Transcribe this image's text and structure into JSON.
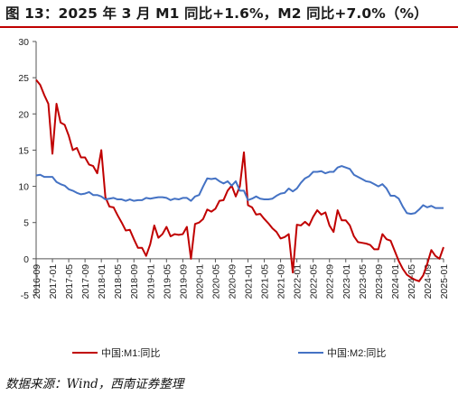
{
  "title": "图 13：2025 年 3 月 M1 同比+1.6%，M2 同比+7.0%（%）",
  "source": "数据来源：Wind，西南证券整理",
  "colors": {
    "m1": "#c00000",
    "m2": "#4472c4",
    "title_rule": "#c00000",
    "axis": "#555555"
  },
  "chart_data": {
    "type": "line",
    "y_ticks": [
      "30",
      "25",
      "20",
      "15",
      "10",
      "5",
      "0",
      "-5"
    ],
    "ylim": [
      -5,
      30
    ],
    "x_tick_labels": [
      "2016-09",
      "2017-01",
      "2017-05",
      "2017-09",
      "2018-01",
      "2018-05",
      "2018-09",
      "2019-01",
      "2019-05",
      "2019-09",
      "2020-01",
      "2020-05",
      "2020-09",
      "2021-01",
      "2021-05",
      "2021-09",
      "2022-01",
      "2022-05",
      "2022-09",
      "2023-01",
      "2023-05",
      "2023-09",
      "2024-01",
      "2024-05",
      "2024-09",
      "2025-01"
    ],
    "x_start": "2016-09",
    "grid": false,
    "legend_position": "bottom",
    "series": [
      {
        "name": "中国:M1:同比",
        "color": "#c00000",
        "values": [
          24.7,
          24.0,
          22.6,
          21.4,
          14.5,
          21.4,
          18.8,
          18.5,
          17.0,
          15.0,
          15.3,
          14.0,
          14.0,
          13.0,
          12.8,
          11.8,
          15.0,
          8.5,
          7.2,
          7.1,
          6.0,
          5.0,
          3.9,
          4.0,
          2.7,
          1.5,
          1.5,
          0.4,
          2.0,
          4.6,
          2.9,
          3.4,
          4.4,
          3.1,
          3.4,
          3.3,
          3.4,
          4.4,
          0.0,
          4.8,
          5.0,
          5.5,
          6.8,
          6.5,
          6.9,
          8.0,
          8.1,
          9.4,
          10.1,
          8.6,
          10.0,
          14.7,
          7.4,
          7.1,
          6.1,
          6.2,
          5.5,
          4.9,
          4.2,
          3.7,
          2.8,
          3.0,
          3.4,
          -1.9,
          4.7,
          4.6,
          5.1,
          4.6,
          5.8,
          6.7,
          6.1,
          6.4,
          4.6,
          3.7,
          6.7,
          5.3,
          5.3,
          4.6,
          3.1,
          2.3,
          2.2,
          2.1,
          1.9,
          1.3,
          1.3,
          3.4,
          2.7,
          2.5,
          1.1,
          -0.3,
          -1.4,
          -2.2,
          -2.6,
          -2.9,
          -3.1,
          -2.3,
          -0.7,
          1.2,
          0.4,
          0.0,
          1.6
        ]
      },
      {
        "name": "中国:M2:同比",
        "color": "#4472c4",
        "values": [
          11.5,
          11.6,
          11.3,
          11.3,
          11.3,
          10.6,
          10.3,
          10.1,
          9.6,
          9.4,
          9.1,
          8.9,
          9.0,
          9.2,
          8.8,
          8.8,
          8.6,
          8.2,
          8.3,
          8.4,
          8.2,
          8.2,
          8.0,
          8.2,
          8.0,
          8.1,
          8.1,
          8.4,
          8.3,
          8.4,
          8.5,
          8.5,
          8.4,
          8.1,
          8.3,
          8.2,
          8.4,
          8.4,
          8.0,
          8.6,
          8.8,
          10.0,
          11.1,
          11.0,
          11.1,
          10.7,
          10.4,
          10.7,
          10.1,
          10.7,
          9.4,
          9.4,
          8.1,
          8.3,
          8.6,
          8.3,
          8.2,
          8.2,
          8.3,
          8.7,
          9.0,
          9.1,
          9.7,
          9.3,
          9.7,
          10.5,
          11.1,
          11.4,
          12.0,
          12.0,
          12.1,
          11.8,
          12.0,
          12.0,
          12.6,
          12.8,
          12.6,
          12.4,
          11.6,
          11.3,
          11.0,
          10.7,
          10.6,
          10.3,
          10.0,
          10.3,
          9.7,
          8.7,
          8.7,
          8.3,
          7.2,
          6.3,
          6.2,
          6.3,
          6.8,
          7.4,
          7.1,
          7.3,
          7.0,
          7.0,
          7.0
        ]
      }
    ]
  }
}
